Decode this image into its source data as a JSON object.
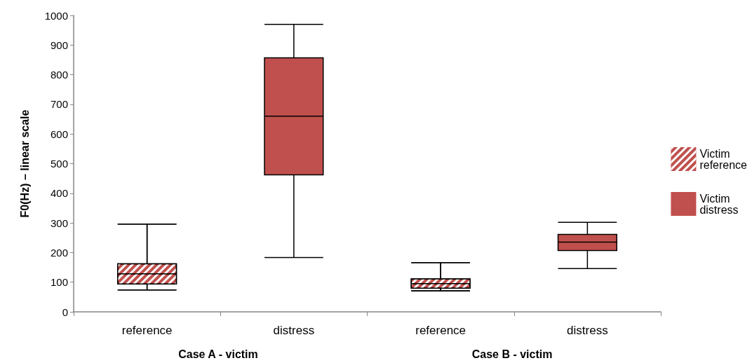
{
  "chart_data": {
    "type": "box",
    "ylabel": "F0(Hz) – linear scale",
    "categories": [
      "reference",
      "distress",
      "reference",
      "distress"
    ],
    "annotations": [
      "Case A - victim",
      "Case B - victim"
    ],
    "series": [
      {
        "name": "Victim reference",
        "color": "#c0504d",
        "boxes": [
          {
            "low": 74,
            "q1": 94,
            "median": 128,
            "q3": 162,
            "high": 296
          },
          null,
          {
            "low": 71,
            "q1": 80,
            "median": 95,
            "q3": 111,
            "high": 166
          },
          null
        ]
      },
      {
        "name": "Victim distress",
        "color": "#c0504d",
        "boxes": [
          null,
          {
            "low": 183,
            "q1": 462,
            "median": 660,
            "q3": 857,
            "high": 970
          },
          null,
          {
            "low": 146,
            "q1": 207,
            "median": 235,
            "q3": 261,
            "high": 302
          }
        ]
      }
    ],
    "ylim": [
      0,
      1000
    ],
    "yticks": [
      0,
      100,
      200,
      300,
      400,
      500,
      600,
      700,
      800,
      900,
      1000
    ],
    "grid": false,
    "legend": "right"
  }
}
